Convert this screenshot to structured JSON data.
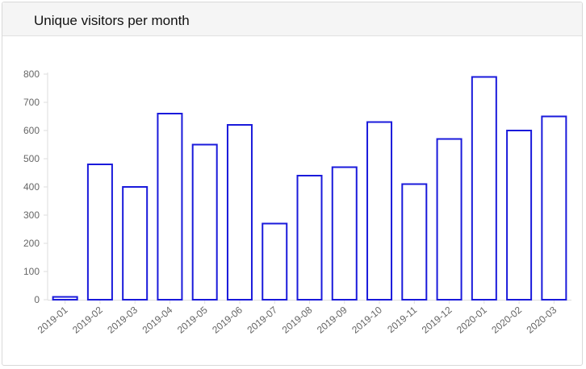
{
  "panel": {
    "title": "Unique visitors per month"
  },
  "colors": {
    "bar_stroke": "#1a1adb",
    "axis": "#dddddd",
    "tick_text": "#666666"
  },
  "chart_data": {
    "type": "bar",
    "title": "Unique visitors per month",
    "xlabel": "",
    "ylabel": "",
    "categories": [
      "2019-01",
      "2019-02",
      "2019-03",
      "2019-04",
      "2019-05",
      "2019-06",
      "2019-07",
      "2019-08",
      "2019-09",
      "2019-10",
      "2019-11",
      "2019-12",
      "2020-01",
      "2020-02",
      "2020-03"
    ],
    "values": [
      10,
      480,
      400,
      660,
      550,
      620,
      270,
      440,
      470,
      630,
      410,
      570,
      790,
      600,
      650
    ],
    "ylim": [
      0,
      800
    ],
    "yticks": [
      0,
      100,
      200,
      300,
      400,
      500,
      600,
      700,
      800
    ],
    "grid": false,
    "legend": "none",
    "bar_style": "outline"
  }
}
